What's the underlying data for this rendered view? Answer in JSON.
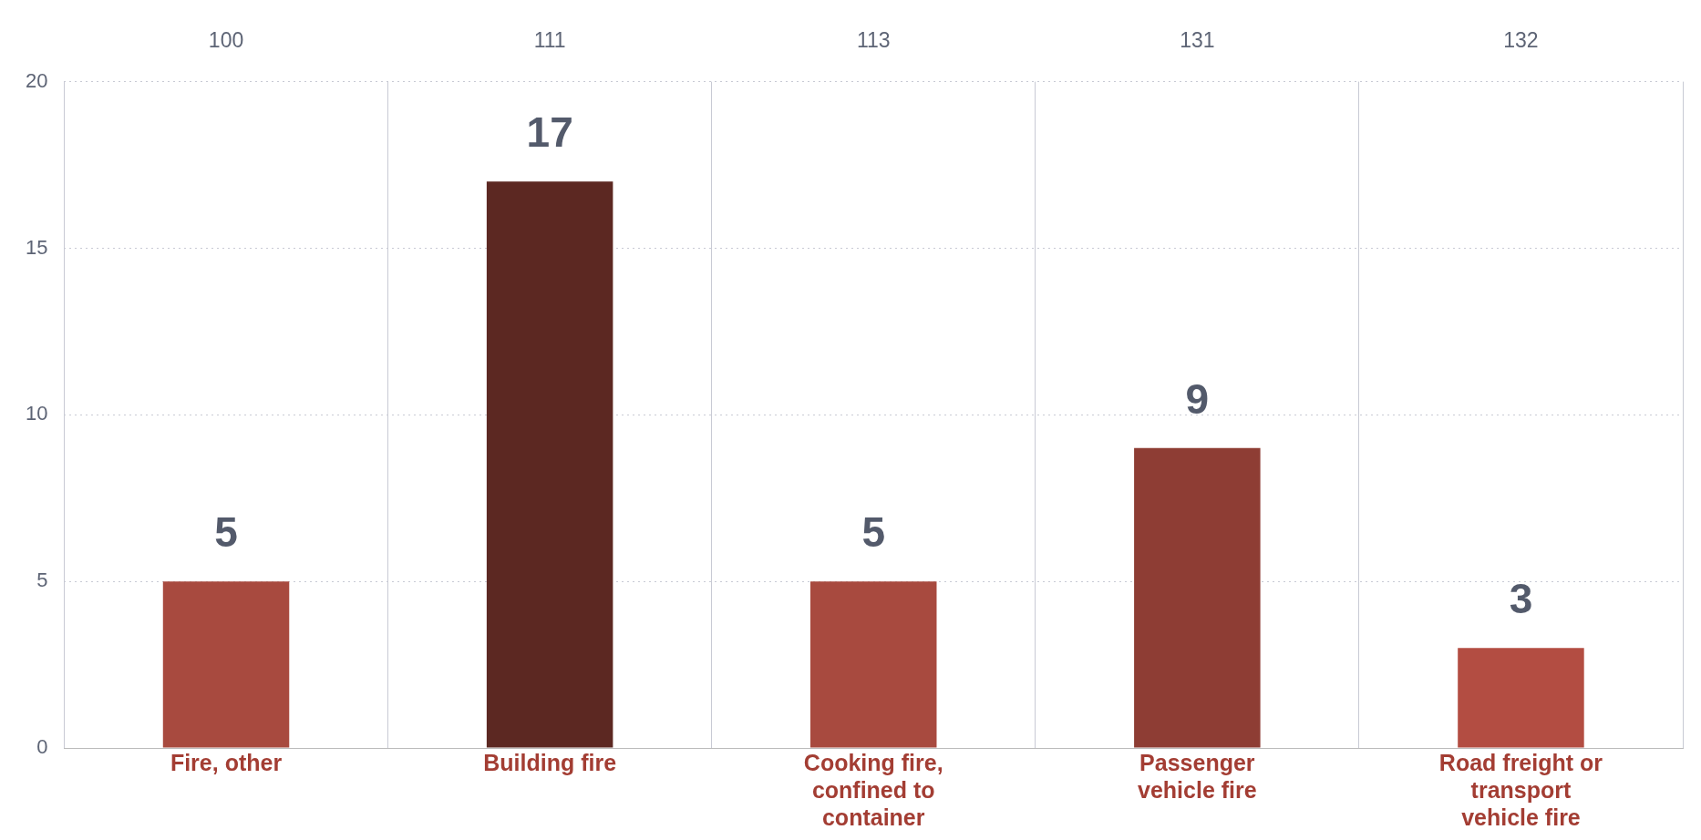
{
  "chart_data": {
    "type": "bar",
    "categories": [
      "Fire, other",
      "Building fire",
      "Cooking fire, confined to container",
      "Passenger vehicle fire",
      "Road freight or transport vehicle fire"
    ],
    "values": [
      5,
      17,
      5,
      9,
      3
    ],
    "colors": [
      "#a84a3f",
      "#5c2822",
      "#a84a3f",
      "#8e3d34",
      "#b34d42"
    ],
    "ylim": [
      0,
      20
    ],
    "yticks": [
      0,
      5,
      10,
      15,
      20
    ],
    "grid": true,
    "legend": false,
    "data_labels": true,
    "annotations": [
      "100",
      "111",
      "113",
      "131",
      "132"
    ]
  }
}
